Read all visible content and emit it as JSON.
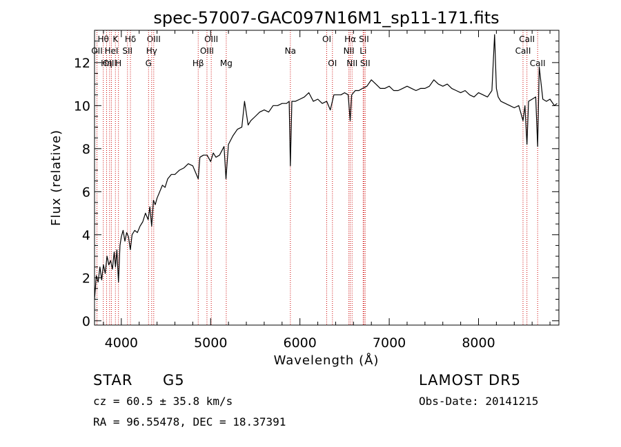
{
  "chart_data": {
    "type": "line",
    "title": "spec-57007-GAC097N16M1_sp11-171.fits",
    "xlabel": "Wavelength (Å)",
    "ylabel": "Flux (relative)",
    "xlim": [
      3700,
      8900
    ],
    "ylim": [
      -0.2,
      13.5
    ],
    "xticks": [
      4000,
      5000,
      6000,
      7000,
      8000
    ],
    "yticks": [
      0,
      2,
      4,
      6,
      8,
      10,
      12
    ],
    "grid": false,
    "series": [
      {
        "x": [
          3700,
          3720,
          3740,
          3760,
          3780,
          3800,
          3820,
          3840,
          3860,
          3880,
          3900,
          3920,
          3935,
          3950,
          3968,
          3985,
          4000,
          4020,
          4040,
          4060,
          4080,
          4101,
          4120,
          4150,
          4180,
          4210,
          4240,
          4270,
          4300,
          4320,
          4340,
          4360,
          4380,
          4400,
          4430,
          4460,
          4490,
          4520,
          4560,
          4600,
          4650,
          4700,
          4750,
          4800,
          4861,
          4880,
          4920,
          4960,
          5000,
          5030,
          5060,
          5100,
          5150,
          5172,
          5200,
          5250,
          5300,
          5350,
          5380,
          5420,
          5450,
          5500,
          5550,
          5600,
          5650,
          5700,
          5750,
          5800,
          5850,
          5880,
          5893,
          5910,
          5950,
          6000,
          6050,
          6100,
          6150,
          6200,
          6250,
          6300,
          6340,
          6380,
          6420,
          6460,
          6500,
          6540,
          6563,
          6580,
          6620,
          6660,
          6700,
          6750,
          6800,
          6850,
          6900,
          6950,
          7000,
          7050,
          7100,
          7150,
          7200,
          7250,
          7300,
          7350,
          7400,
          7450,
          7500,
          7550,
          7600,
          7650,
          7700,
          7750,
          7800,
          7850,
          7900,
          7950,
          8000,
          8050,
          8100,
          8150,
          8180,
          8200,
          8220,
          8250,
          8300,
          8350,
          8400,
          8450,
          8498,
          8520,
          8542,
          8560,
          8600,
          8640,
          8662,
          8680,
          8720,
          8760,
          8800,
          8850,
          8880
        ],
        "y": [
          1.0,
          2.1,
          1.8,
          2.5,
          1.9,
          2.6,
          2.2,
          3.0,
          2.6,
          2.8,
          2.4,
          3.2,
          2.5,
          3.3,
          1.8,
          3.5,
          3.9,
          4.2,
          3.7,
          4.1,
          3.9,
          3.3,
          4.0,
          4.2,
          4.1,
          4.4,
          4.6,
          5.0,
          4.7,
          5.3,
          4.4,
          5.6,
          5.4,
          5.7,
          6.0,
          6.3,
          6.2,
          6.6,
          6.8,
          6.8,
          7.0,
          7.1,
          7.3,
          7.2,
          6.6,
          7.6,
          7.7,
          7.7,
          7.4,
          7.8,
          7.6,
          7.7,
          8.1,
          6.6,
          8.2,
          8.6,
          8.9,
          9.0,
          10.2,
          9.1,
          9.3,
          9.5,
          9.7,
          9.8,
          9.7,
          10.0,
          10.0,
          10.1,
          10.1,
          10.2,
          7.2,
          10.2,
          10.2,
          10.3,
          10.4,
          10.6,
          10.2,
          10.3,
          10.1,
          10.2,
          9.8,
          10.5,
          10.5,
          10.5,
          10.6,
          10.5,
          9.3,
          10.5,
          10.7,
          10.7,
          10.8,
          10.9,
          11.2,
          11.0,
          10.8,
          10.8,
          10.9,
          10.7,
          10.7,
          10.8,
          10.9,
          10.8,
          10.7,
          10.8,
          10.8,
          10.9,
          11.2,
          11.0,
          10.9,
          11.0,
          10.8,
          10.7,
          10.6,
          10.7,
          10.5,
          10.4,
          10.6,
          10.5,
          10.4,
          10.7,
          13.3,
          10.8,
          10.4,
          10.2,
          10.1,
          10.0,
          9.9,
          10.0,
          9.3,
          10.0,
          8.2,
          10.2,
          10.3,
          10.4,
          8.1,
          11.8,
          10.3,
          10.2,
          10.3,
          10.0,
          10.1
        ]
      }
    ],
    "line_markers": [
      {
        "label": "Hθ",
        "wl": 3798,
        "row": 0
      },
      {
        "label": "OII",
        "wl": 3727,
        "row": 1
      },
      {
        "label": "OIII",
        "wl": 3869,
        "row": 2
      },
      {
        "label": "Hη",
        "wl": 3835,
        "row": 2
      },
      {
        "label": "K",
        "wl": 3934,
        "row": 0
      },
      {
        "label": "HeI",
        "wl": 3889,
        "row": 1
      },
      {
        "label": "H",
        "wl": 3968,
        "row": 2
      },
      {
        "label": "Hδ",
        "wl": 4102,
        "row": 0
      },
      {
        "label": "SII",
        "wl": 4069,
        "row": 1
      },
      {
        "label": "OIII",
        "wl": 4363,
        "row": 0
      },
      {
        "label": "Hγ",
        "wl": 4340,
        "row": 1
      },
      {
        "label": "G",
        "wl": 4305,
        "row": 2
      },
      {
        "label": "Hβ",
        "wl": 4861,
        "row": 2
      },
      {
        "label": "OIII",
        "wl": 5007,
        "row": 0
      },
      {
        "label": "OIII",
        "wl": 4959,
        "row": 1
      },
      {
        "label": "Mg",
        "wl": 5175,
        "row": 2
      },
      {
        "label": "Na",
        "wl": 5893,
        "row": 1
      },
      {
        "label": "OI",
        "wl": 6300,
        "row": 0
      },
      {
        "label": "OI",
        "wl": 6364,
        "row": 2
      },
      {
        "label": "Hα",
        "wl": 6563,
        "row": 0
      },
      {
        "label": "NII",
        "wl": 6548,
        "row": 1
      },
      {
        "label": "NII",
        "wl": 6584,
        "row": 2
      },
      {
        "label": "SII",
        "wl": 6717,
        "row": 0
      },
      {
        "label": "Li",
        "wl": 6708,
        "row": 1
      },
      {
        "label": "SII",
        "wl": 6731,
        "row": 2
      },
      {
        "label": "CaII",
        "wl": 8542,
        "row": 0
      },
      {
        "label": "CaII",
        "wl": 8498,
        "row": 1
      },
      {
        "label": "CaII",
        "wl": 8662,
        "row": 2
      }
    ],
    "colors": {
      "spectrum": "#000000",
      "markers": "#cc0000"
    }
  },
  "info": {
    "class_label": "STAR",
    "subclass": "G5",
    "survey": "LAMOST DR5",
    "cz_text": "cz = 60.5 ± 35.8 km/s",
    "obs_date_text": "Obs-Date: 20141215",
    "coords_text": "RA =  96.55478, DEC =  18.37391"
  }
}
